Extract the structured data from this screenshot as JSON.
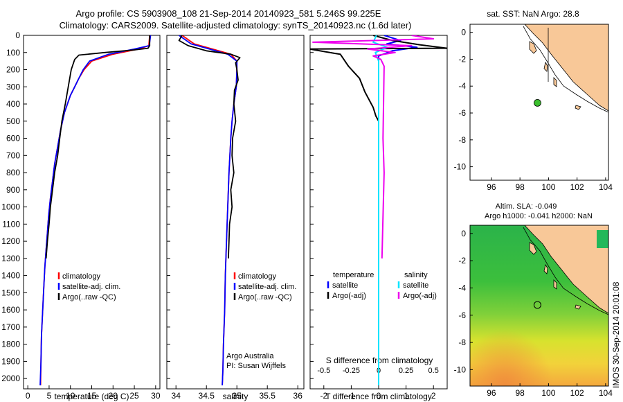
{
  "header": {
    "line1": "Argo profile: CS 5903908_108 21-Sep-2014 20140923_581 5.246S 99.225E",
    "line2": "Climatology: CARS2009. Satellite-adjusted climatology: synTS_20140923.nc (1.6d later)"
  },
  "side_stamp": "IMOS 30-Sep-2014 20:01:08",
  "colors": {
    "climatology": "#ff0000",
    "satellite": "#0000ff",
    "argo": "#000000",
    "salinity_satellite": "#00e5ff",
    "salinity_argo": "#ee00ee",
    "land": "#f8c898",
    "float_marker": "#3bbf2e"
  },
  "chart_data": [
    {
      "type": "line",
      "id": "temperature",
      "xlabel": "temperature (deg C)",
      "ylabel": "",
      "xlim": [
        -1,
        31
      ],
      "ylim": [
        2060,
        0
      ],
      "xticks": [
        "0",
        "5",
        "10",
        "15",
        "20",
        "25",
        "30"
      ],
      "xtick_values": [
        0,
        5,
        10,
        15,
        20,
        25,
        30
      ],
      "yticks": [
        "0",
        "100",
        "200",
        "300",
        "400",
        "500",
        "600",
        "700",
        "800",
        "900",
        "1000",
        "1100",
        "1200",
        "1300",
        "1400",
        "1500",
        "1600",
        "1700",
        "1800",
        "1900",
        "2000"
      ],
      "ytick_values": [
        0,
        100,
        200,
        300,
        400,
        500,
        600,
        700,
        800,
        900,
        1000,
        1100,
        1200,
        1300,
        1400,
        1500,
        1600,
        1700,
        1800,
        1900,
        2000
      ],
      "legend": [
        "climatology",
        "satellite-adj. clim.",
        "Argo(..raw -QC)"
      ],
      "series": [
        {
          "name": "climatology",
          "color": "#ff0000",
          "x": [
            28.6,
            28.4,
            26,
            20,
            15,
            13.2,
            12,
            11,
            10,
            8.6,
            7.7,
            7,
            6.3,
            5.8,
            5.3,
            4.9,
            4.6,
            4.3,
            4,
            3.8,
            3.6,
            3.4,
            3.2,
            3.1,
            3
          ],
          "y": [
            0,
            60,
            80,
            110,
            150,
            200,
            250,
            300,
            350,
            450,
            550,
            650,
            750,
            850,
            950,
            1050,
            1150,
            1250,
            1350,
            1450,
            1550,
            1650,
            1750,
            1900,
            2040
          ]
        },
        {
          "name": "satellite-adj. clim.",
          "color": "#0000ff",
          "x": [
            28.8,
            28.5,
            25,
            19,
            14.5,
            13,
            12,
            11,
            10,
            8.6,
            7.7,
            7,
            6.3,
            5.8,
            5.3,
            4.9,
            4.6,
            4.3,
            4,
            3.8,
            3.6,
            3.4,
            3.2,
            3.1,
            2.9
          ],
          "y": [
            0,
            60,
            80,
            110,
            150,
            200,
            250,
            300,
            350,
            450,
            550,
            650,
            750,
            850,
            950,
            1050,
            1150,
            1250,
            1350,
            1450,
            1550,
            1650,
            1750,
            1900,
            2040
          ]
        },
        {
          "name": "Argo(..raw -QC)",
          "color": "#000000",
          "x": [
            28.6,
            28.6,
            28.2,
            25,
            18,
            12,
            11,
            10.2,
            9.5,
            8.8,
            8,
            7.5,
            7,
            6.3,
            5.8,
            5.3,
            5,
            4.6,
            4.3
          ],
          "y": [
            0,
            60,
            75,
            85,
            100,
            115,
            140,
            200,
            300,
            400,
            500,
            600,
            700,
            800,
            900,
            1000,
            1100,
            1200,
            1300
          ]
        }
      ]
    },
    {
      "type": "line",
      "id": "salinity",
      "xlabel": "salinity",
      "xlim": [
        33.85,
        36.1
      ],
      "ylim": [
        2060,
        0
      ],
      "xticks": [
        "34",
        "34.5",
        "35",
        "35.5",
        "36"
      ],
      "xtick_values": [
        34,
        34.5,
        35,
        35.5,
        36
      ],
      "legend": [
        "climatology",
        "satellite-adj. clim.",
        "Argo(..raw -QC)"
      ],
      "annotations": [
        "Argo Australia",
        "PI: Susan Wijffels"
      ],
      "series": [
        {
          "name": "climatology",
          "color": "#ff0000",
          "x": [
            34.1,
            34.3,
            34.6,
            34.9,
            35.0,
            35.0,
            34.99,
            34.95,
            34.92,
            34.9,
            34.87,
            34.85,
            34.83,
            34.81,
            34.8,
            34.78,
            34.77,
            34.76
          ],
          "y": [
            0,
            50,
            80,
            110,
            150,
            200,
            300,
            400,
            500,
            600,
            800,
            1000,
            1200,
            1400,
            1600,
            1800,
            1950,
            2040
          ]
        },
        {
          "name": "satellite-adj. clim.",
          "color": "#0000ff",
          "x": [
            34.05,
            34.25,
            34.55,
            34.85,
            35.0,
            35.0,
            34.99,
            34.95,
            34.92,
            34.9,
            34.87,
            34.85,
            34.83,
            34.81,
            34.8,
            34.78,
            34.77,
            34.76
          ],
          "y": [
            0,
            50,
            80,
            110,
            150,
            200,
            300,
            400,
            500,
            600,
            800,
            1000,
            1200,
            1400,
            1600,
            1800,
            1950,
            2040
          ]
        },
        {
          "name": "Argo(..raw -QC)",
          "color": "#000000",
          "x": [
            34.1,
            34.05,
            34.2,
            34.5,
            34.9,
            35.05,
            34.98,
            35.0,
            35.02,
            34.96,
            34.95,
            34.98,
            34.93,
            34.92,
            34.95,
            34.9,
            34.92,
            34.88,
            34.87,
            34.86
          ],
          "y": [
            0,
            30,
            60,
            90,
            110,
            130,
            160,
            200,
            260,
            320,
            400,
            500,
            600,
            700,
            800,
            900,
            1000,
            1100,
            1200,
            1300
          ]
        }
      ]
    },
    {
      "type": "line",
      "id": "difference",
      "xlabel": "T difference from climatology",
      "xlabel_top": "S difference from climatology",
      "xlim_T": [
        -2.5,
        2.5
      ],
      "xticks": [
        "-2",
        "-1",
        "0",
        "1",
        "2"
      ],
      "xtick_values": [
        -2,
        -1,
        0,
        1,
        2
      ],
      "s_ticks": [
        "-0.5",
        "-0.25",
        "0",
        "0.25",
        "0.5"
      ],
      "s_tick_values": [
        -0.5,
        -0.25,
        0,
        0.25,
        0.5
      ],
      "legend_temperature": {
        "title": "temperature",
        "items": [
          "satellite",
          "Argo(-adj)"
        ]
      },
      "legend_salinity": {
        "title": "salinity",
        "items": [
          "satellite",
          "Argo(-adj)"
        ]
      },
      "series": [
        {
          "name": "temperature satellite",
          "color": "#0000ff",
          "x": [
            0.2,
            0.8,
            0.3,
            1.4,
            0.5,
            0,
            0,
            0,
            0,
            0,
            0
          ],
          "y": [
            0,
            30,
            50,
            70,
            90,
            120,
            200,
            500,
            1000,
            1500,
            2040
          ]
        },
        {
          "name": "temperature Argo(-adj)",
          "color": "#000000",
          "x": [
            -0.2,
            0.5,
            1.5,
            2.5,
            -2.5,
            -1.6,
            -1.4,
            -1.1,
            -0.7,
            -0.5,
            -0.2,
            -0.1,
            0,
            0
          ],
          "y": [
            0,
            30,
            55,
            75,
            80,
            105,
            110,
            180,
            250,
            330,
            420,
            470,
            500,
            1300
          ]
        },
        {
          "name": "salinity satellite",
          "color": "#00e5ff",
          "x": [
            -0.02,
            -0.05,
            0.08,
            -0.03,
            0,
            0,
            0,
            0
          ],
          "y": [
            0,
            40,
            70,
            100,
            150,
            400,
            1200,
            2040
          ]
        },
        {
          "name": "salinity Argo(-adj)",
          "color": "#ee00ee",
          "x": [
            0.3,
            0.5,
            -0.6,
            0.3,
            -0.1,
            0.15,
            -0.05,
            0.02,
            0.05,
            0.04,
            0.05,
            0.03
          ],
          "y": [
            0,
            20,
            40,
            60,
            80,
            100,
            120,
            140,
            180,
            600,
            800,
            1300
          ]
        }
      ]
    },
    {
      "type": "scatter",
      "id": "map-sst",
      "title": "sat. SST: NaN Argo: 28.8",
      "xlim": [
        94.5,
        104.2
      ],
      "ylim": [
        -11,
        0.6
      ],
      "xticks": [
        "96",
        "98",
        "100",
        "102",
        "104"
      ],
      "xtick_values": [
        96,
        98,
        100,
        102,
        104
      ],
      "yticks": [
        "0",
        "-2",
        "-4",
        "-6",
        "-8",
        "-10"
      ],
      "ytick_values": [
        0,
        -2,
        -4,
        -6,
        -8,
        -10
      ],
      "float_position": {
        "lon": 99.225,
        "lat": -5.246
      }
    },
    {
      "type": "heatmap",
      "id": "map-sla",
      "title_line1": "Altim. SLA: -0.049",
      "title_line2": "Argo h1000: -0.041 h2000: NaN",
      "xlim": [
        94.5,
        104.2
      ],
      "ylim": [
        -11.2,
        0.6
      ],
      "xticks": [
        "96",
        "98",
        "100",
        "102",
        "104"
      ],
      "xtick_values": [
        96,
        98,
        100,
        102,
        104
      ],
      "yticks": [
        "0",
        "-2",
        "-4",
        "-6",
        "-8",
        "-10"
      ],
      "ytick_values": [
        0,
        -2,
        -4,
        -6,
        -8,
        -10
      ],
      "float_position": {
        "lon": 99.225,
        "lat": -5.246
      }
    }
  ]
}
